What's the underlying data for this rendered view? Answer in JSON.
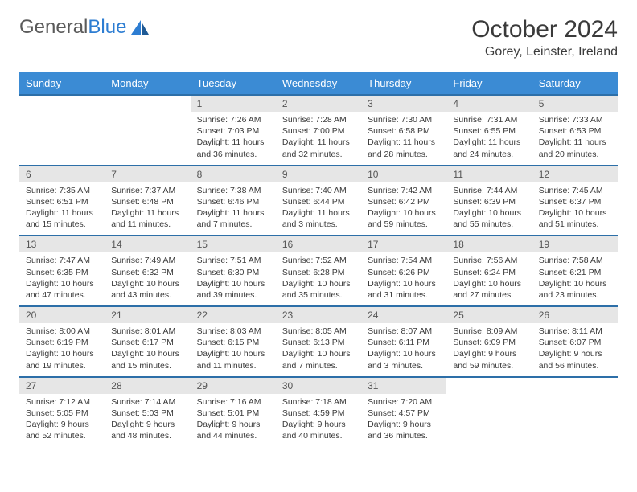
{
  "brand": {
    "part1": "General",
    "part2": "Blue"
  },
  "title": "October 2024",
  "location": "Gorey, Leinster, Ireland",
  "colors": {
    "header_bg": "#3b8bd4",
    "header_text": "#ffffff",
    "daynum_bg": "#e6e6e6",
    "row_border": "#2d6fa8",
    "text": "#3a3a3a",
    "logo_blue": "#2d7dd2"
  },
  "weekdays": [
    "Sunday",
    "Monday",
    "Tuesday",
    "Wednesday",
    "Thursday",
    "Friday",
    "Saturday"
  ],
  "weeks": [
    [
      null,
      null,
      {
        "n": "1",
        "sr": "Sunrise: 7:26 AM",
        "ss": "Sunset: 7:03 PM",
        "dl": "Daylight: 11 hours and 36 minutes."
      },
      {
        "n": "2",
        "sr": "Sunrise: 7:28 AM",
        "ss": "Sunset: 7:00 PM",
        "dl": "Daylight: 11 hours and 32 minutes."
      },
      {
        "n": "3",
        "sr": "Sunrise: 7:30 AM",
        "ss": "Sunset: 6:58 PM",
        "dl": "Daylight: 11 hours and 28 minutes."
      },
      {
        "n": "4",
        "sr": "Sunrise: 7:31 AM",
        "ss": "Sunset: 6:55 PM",
        "dl": "Daylight: 11 hours and 24 minutes."
      },
      {
        "n": "5",
        "sr": "Sunrise: 7:33 AM",
        "ss": "Sunset: 6:53 PM",
        "dl": "Daylight: 11 hours and 20 minutes."
      }
    ],
    [
      {
        "n": "6",
        "sr": "Sunrise: 7:35 AM",
        "ss": "Sunset: 6:51 PM",
        "dl": "Daylight: 11 hours and 15 minutes."
      },
      {
        "n": "7",
        "sr": "Sunrise: 7:37 AM",
        "ss": "Sunset: 6:48 PM",
        "dl": "Daylight: 11 hours and 11 minutes."
      },
      {
        "n": "8",
        "sr": "Sunrise: 7:38 AM",
        "ss": "Sunset: 6:46 PM",
        "dl": "Daylight: 11 hours and 7 minutes."
      },
      {
        "n": "9",
        "sr": "Sunrise: 7:40 AM",
        "ss": "Sunset: 6:44 PM",
        "dl": "Daylight: 11 hours and 3 minutes."
      },
      {
        "n": "10",
        "sr": "Sunrise: 7:42 AM",
        "ss": "Sunset: 6:42 PM",
        "dl": "Daylight: 10 hours and 59 minutes."
      },
      {
        "n": "11",
        "sr": "Sunrise: 7:44 AM",
        "ss": "Sunset: 6:39 PM",
        "dl": "Daylight: 10 hours and 55 minutes."
      },
      {
        "n": "12",
        "sr": "Sunrise: 7:45 AM",
        "ss": "Sunset: 6:37 PM",
        "dl": "Daylight: 10 hours and 51 minutes."
      }
    ],
    [
      {
        "n": "13",
        "sr": "Sunrise: 7:47 AM",
        "ss": "Sunset: 6:35 PM",
        "dl": "Daylight: 10 hours and 47 minutes."
      },
      {
        "n": "14",
        "sr": "Sunrise: 7:49 AM",
        "ss": "Sunset: 6:32 PM",
        "dl": "Daylight: 10 hours and 43 minutes."
      },
      {
        "n": "15",
        "sr": "Sunrise: 7:51 AM",
        "ss": "Sunset: 6:30 PM",
        "dl": "Daylight: 10 hours and 39 minutes."
      },
      {
        "n": "16",
        "sr": "Sunrise: 7:52 AM",
        "ss": "Sunset: 6:28 PM",
        "dl": "Daylight: 10 hours and 35 minutes."
      },
      {
        "n": "17",
        "sr": "Sunrise: 7:54 AM",
        "ss": "Sunset: 6:26 PM",
        "dl": "Daylight: 10 hours and 31 minutes."
      },
      {
        "n": "18",
        "sr": "Sunrise: 7:56 AM",
        "ss": "Sunset: 6:24 PM",
        "dl": "Daylight: 10 hours and 27 minutes."
      },
      {
        "n": "19",
        "sr": "Sunrise: 7:58 AM",
        "ss": "Sunset: 6:21 PM",
        "dl": "Daylight: 10 hours and 23 minutes."
      }
    ],
    [
      {
        "n": "20",
        "sr": "Sunrise: 8:00 AM",
        "ss": "Sunset: 6:19 PM",
        "dl": "Daylight: 10 hours and 19 minutes."
      },
      {
        "n": "21",
        "sr": "Sunrise: 8:01 AM",
        "ss": "Sunset: 6:17 PM",
        "dl": "Daylight: 10 hours and 15 minutes."
      },
      {
        "n": "22",
        "sr": "Sunrise: 8:03 AM",
        "ss": "Sunset: 6:15 PM",
        "dl": "Daylight: 10 hours and 11 minutes."
      },
      {
        "n": "23",
        "sr": "Sunrise: 8:05 AM",
        "ss": "Sunset: 6:13 PM",
        "dl": "Daylight: 10 hours and 7 minutes."
      },
      {
        "n": "24",
        "sr": "Sunrise: 8:07 AM",
        "ss": "Sunset: 6:11 PM",
        "dl": "Daylight: 10 hours and 3 minutes."
      },
      {
        "n": "25",
        "sr": "Sunrise: 8:09 AM",
        "ss": "Sunset: 6:09 PM",
        "dl": "Daylight: 9 hours and 59 minutes."
      },
      {
        "n": "26",
        "sr": "Sunrise: 8:11 AM",
        "ss": "Sunset: 6:07 PM",
        "dl": "Daylight: 9 hours and 56 minutes."
      }
    ],
    [
      {
        "n": "27",
        "sr": "Sunrise: 7:12 AM",
        "ss": "Sunset: 5:05 PM",
        "dl": "Daylight: 9 hours and 52 minutes."
      },
      {
        "n": "28",
        "sr": "Sunrise: 7:14 AM",
        "ss": "Sunset: 5:03 PM",
        "dl": "Daylight: 9 hours and 48 minutes."
      },
      {
        "n": "29",
        "sr": "Sunrise: 7:16 AM",
        "ss": "Sunset: 5:01 PM",
        "dl": "Daylight: 9 hours and 44 minutes."
      },
      {
        "n": "30",
        "sr": "Sunrise: 7:18 AM",
        "ss": "Sunset: 4:59 PM",
        "dl": "Daylight: 9 hours and 40 minutes."
      },
      {
        "n": "31",
        "sr": "Sunrise: 7:20 AM",
        "ss": "Sunset: 4:57 PM",
        "dl": "Daylight: 9 hours and 36 minutes."
      },
      null,
      null
    ]
  ]
}
